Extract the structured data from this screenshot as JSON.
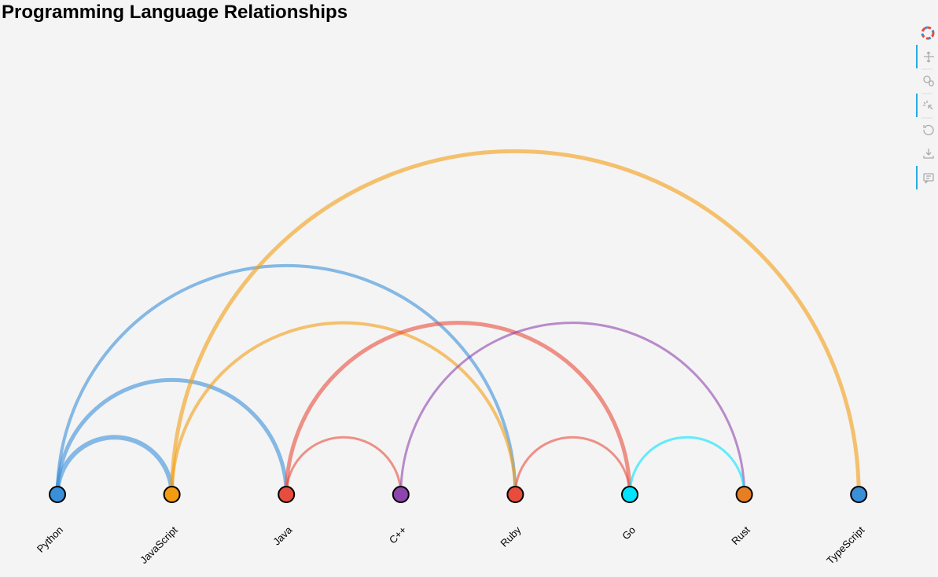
{
  "title": "Programming Language Relationships",
  "nodes": [
    {
      "label": "Python",
      "color": "#3a8fd9"
    },
    {
      "label": "JavaScript",
      "color": "#f39c12"
    },
    {
      "label": "Java",
      "color": "#e74c3c"
    },
    {
      "label": "C++",
      "color": "#8e44ad"
    },
    {
      "label": "Ruby",
      "color": "#e74c3c"
    },
    {
      "label": "Go",
      "color": "#00e5ff"
    },
    {
      "label": "Rust",
      "color": "#e67e22"
    },
    {
      "label": "TypeScript",
      "color": "#3a8fd9"
    }
  ],
  "links": [
    {
      "source": 0,
      "target": 1,
      "weight": 6
    },
    {
      "source": 0,
      "target": 2,
      "weight": 5
    },
    {
      "source": 0,
      "target": 4,
      "weight": 4
    },
    {
      "source": 1,
      "target": 4,
      "weight": 4
    },
    {
      "source": 1,
      "target": 7,
      "weight": 5
    },
    {
      "source": 2,
      "target": 3,
      "weight": 3
    },
    {
      "source": 2,
      "target": 5,
      "weight": 5
    },
    {
      "source": 3,
      "target": 6,
      "weight": 3
    },
    {
      "source": 4,
      "target": 5,
      "weight": 3
    },
    {
      "source": 5,
      "target": 6,
      "weight": 3
    }
  ]
}
